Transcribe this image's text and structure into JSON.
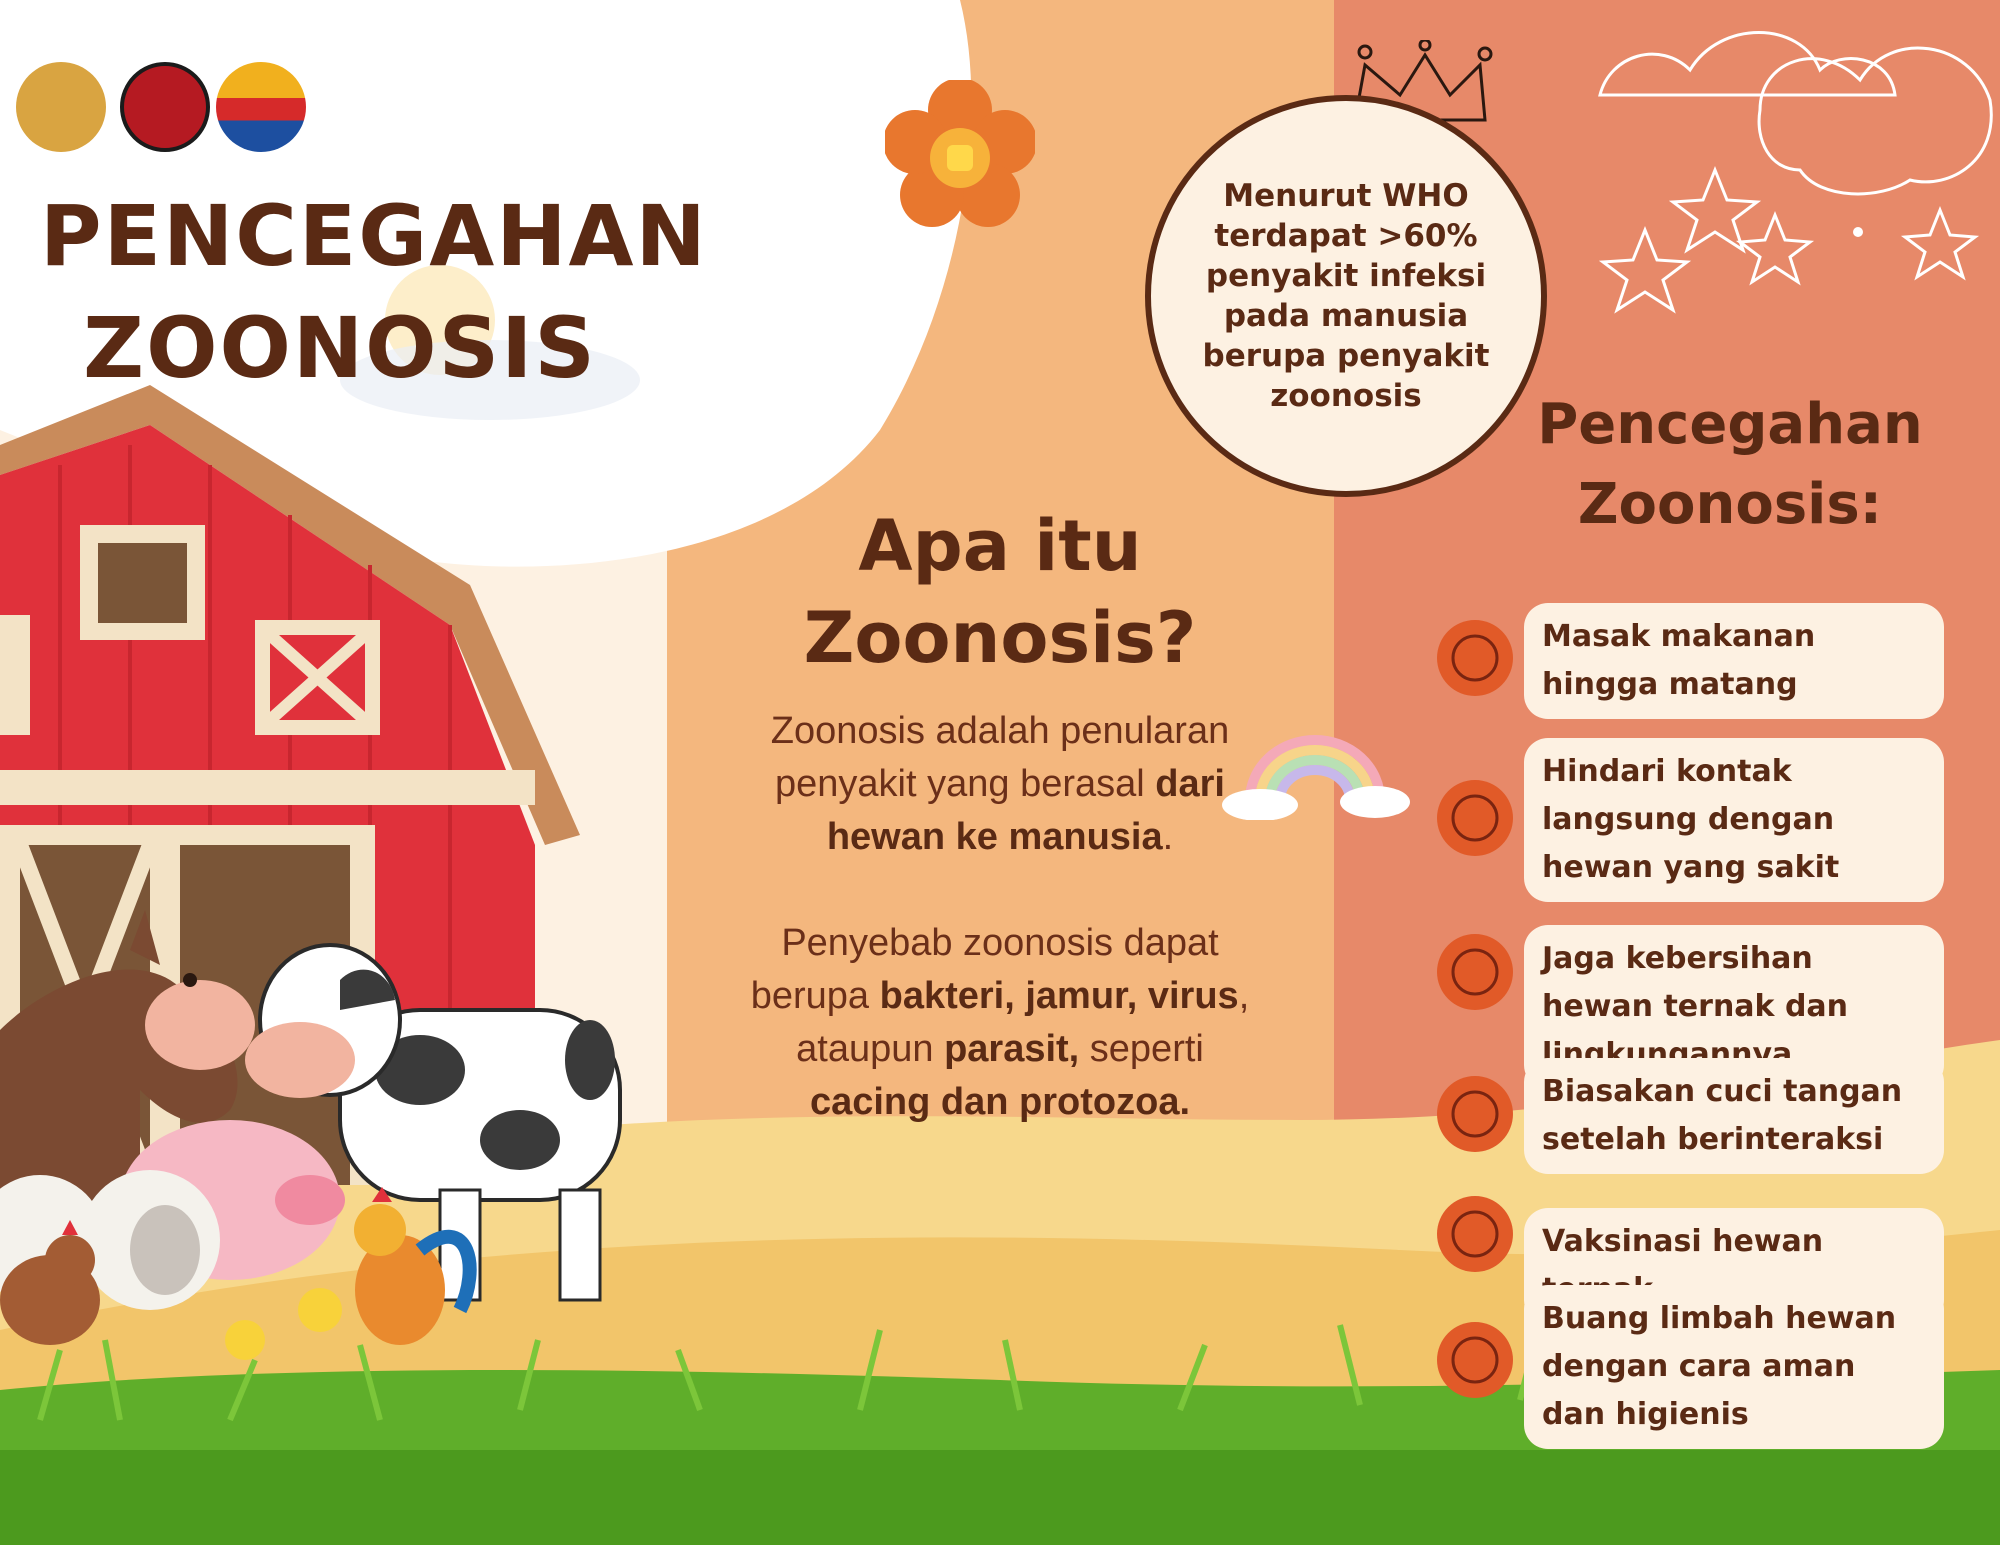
{
  "left": {
    "title_line1": "PENCEGAHAN",
    "title_line2": "ZOONOSIS"
  },
  "middle": {
    "question_line1": "Apa itu",
    "question_line2": "Zoonosis?",
    "para1": [
      {
        "t": "Zoonosis adalah penularan penyakit yang berasal ",
        "b": false
      },
      {
        "t": "dari hewan ke manusia",
        "b": true
      },
      {
        "t": ".",
        "b": false
      }
    ],
    "para2": [
      {
        "t": "Penyebab zoonosis dapat berupa ",
        "b": false
      },
      {
        "t": "bakteri, jamur, virus",
        "b": true
      },
      {
        "t": ", ataupun ",
        "b": false
      },
      {
        "t": "parasit,",
        "b": true
      },
      {
        "t": " seperti ",
        "b": false
      },
      {
        "t": "cacing dan protozoa.",
        "b": true
      }
    ]
  },
  "who_fact": "Menurut WHO terdapat >60% penyakit infeksi pada manusia berupa penyakit zoonosis",
  "right": {
    "title_line1": "Pencegahan",
    "title_line2": "Zoonosis:",
    "tips": [
      {
        "text": "Masak makanan hingga matang",
        "icon": "cooking-pan-icon"
      },
      {
        "text": "Hindari kontak langsung dengan hewan yang sakit",
        "icon": "no-touch-hand-icon"
      },
      {
        "text": "Jaga kebersihan hewan ternak dan lingkungannya",
        "icon": "sparkle-clean-icon"
      },
      {
        "text": "Biasakan cuci tangan setelah berinteraksi",
        "icon": "hand-wash-icon"
      },
      {
        "text": "Vaksinasi hewan ternak",
        "icon": "syringe-vaccine-icon"
      },
      {
        "text": "Buang limbah hewan dengan cara aman dan higienis",
        "icon": "waste-bin-icon"
      }
    ]
  },
  "logos": [
    "university-crest-logo",
    "research-center-logo",
    "community-program-logo"
  ],
  "colors": {
    "brown": "#5a2a14",
    "cream": "#fdf1e2",
    "peach": "#f4b77e",
    "salmon": "#e78969",
    "accent_orange": "#e15a28",
    "barn_red": "#e0313b",
    "grass_green": "#5fae2a"
  }
}
